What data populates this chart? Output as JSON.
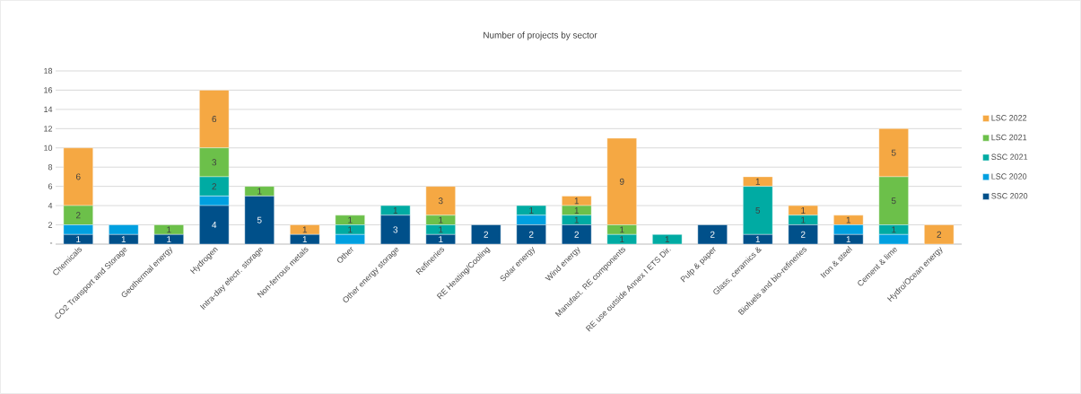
{
  "chart_data": {
    "type": "bar",
    "title": "Number of projects by sector",
    "stacked": true,
    "categories": [
      "Chemicals",
      "CO2 Transport and Storage",
      "Geothermal energy",
      "Hydrogen",
      "Intra-day electr. storage",
      "Non-ferrous metals",
      "Other",
      "Other energy storage",
      "Refineries",
      "RE Heating/Cooling",
      "Solar energy",
      "Wind energy",
      "Manufact. RE components",
      "RE use outside Annex I ETS Dir.",
      "Pulp & paper",
      "Glass, ceramics &",
      "Biofuels and bio-refineries",
      "Iron & steel",
      "Cement & lime",
      "Hydro/Ocean energy"
    ],
    "series": [
      {
        "name": "SSC 2020",
        "color": "#00508a",
        "values": [
          1,
          1,
          1,
          4,
          5,
          1,
          0,
          3,
          1,
          2,
          2,
          2,
          0,
          0,
          2,
          1,
          2,
          1,
          0,
          0
        ],
        "value_labels": [
          "1",
          "1",
          "1",
          "4",
          "5",
          "1",
          null,
          "3",
          "1",
          "2",
          "2",
          "2",
          null,
          null,
          "2",
          "1",
          "2",
          "1",
          null,
          null
        ]
      },
      {
        "name": "LSC 2020",
        "color": "#00a0e0",
        "values": [
          1,
          1,
          0,
          1,
          0,
          0,
          1,
          0,
          0,
          0,
          1,
          0,
          0,
          0,
          0,
          0,
          0,
          1,
          1,
          0
        ],
        "value_labels": [
          null,
          null,
          null,
          null,
          null,
          null,
          null,
          null,
          null,
          null,
          null,
          null,
          null,
          null,
          null,
          null,
          null,
          null,
          null,
          null
        ]
      },
      {
        "name": "SSC 2021",
        "color": "#00aba3",
        "values": [
          0,
          0,
          0,
          2,
          0,
          0,
          1,
          1,
          1,
          0,
          1,
          1,
          1,
          1,
          0,
          5,
          1,
          0,
          1,
          0
        ],
        "value_labels": [
          null,
          null,
          null,
          "2",
          null,
          null,
          "1",
          "1",
          "1",
          null,
          "1",
          "1",
          "1",
          "1",
          null,
          "5",
          "1",
          null,
          "1",
          null
        ]
      },
      {
        "name": "LSC 2021",
        "color": "#6cc04a",
        "values": [
          2,
          0,
          1,
          3,
          1,
          0,
          1,
          0,
          1,
          0,
          0,
          1,
          1,
          0,
          0,
          0,
          0,
          0,
          5,
          0
        ],
        "value_labels": [
          "2",
          null,
          "1",
          "3",
          "1",
          null,
          "1",
          null,
          "1",
          null,
          null,
          "1",
          "1",
          null,
          null,
          null,
          null,
          null,
          "5",
          null
        ]
      },
      {
        "name": "LSC 2022",
        "color": "#f5a843",
        "values": [
          6,
          0,
          0,
          6,
          0,
          1,
          0,
          0,
          3,
          0,
          0,
          1,
          9,
          0,
          0,
          1,
          1,
          1,
          5,
          2
        ],
        "value_labels": [
          "6",
          null,
          null,
          "6",
          null,
          "1",
          null,
          null,
          "3",
          null,
          null,
          "1",
          "9",
          null,
          null,
          "1",
          "1",
          "1",
          "5",
          "2"
        ]
      }
    ],
    "ylim": [
      0,
      18
    ],
    "yticks": [
      {
        "value": 0,
        "label": "-"
      },
      2,
      4,
      6,
      8,
      10,
      12,
      14,
      16,
      18
    ],
    "grid": "y",
    "legend": "right"
  }
}
